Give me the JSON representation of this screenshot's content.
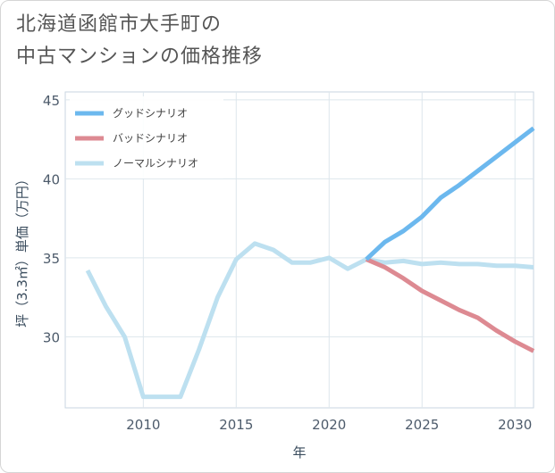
{
  "title_lines": [
    "北海道函館市大手町の",
    "中古マンションの価格推移"
  ],
  "chart_data": {
    "type": "line",
    "title": "北海道函館市大手町の中古マンションの価格推移",
    "xlabel": "年",
    "ylabel": "坪（3.3㎡）単価（万円）",
    "xlim": [
      2005.8,
      2031
    ],
    "ylim": [
      25.5,
      45.5
    ],
    "x_ticks": [
      2010,
      2015,
      2020,
      2025,
      2030
    ],
    "y_ticks": [
      30,
      35,
      40,
      45
    ],
    "grid": true,
    "legend_position": "top-left",
    "series": [
      {
        "name": "グッドシナリオ",
        "color": "#6cb8ee",
        "x": [
          2022,
          2023,
          2024,
          2025,
          2026,
          2027,
          2028,
          2029,
          2030,
          2031
        ],
        "y": [
          34.9,
          36.0,
          36.7,
          37.6,
          38.8,
          39.6,
          40.5,
          41.4,
          42.3,
          43.2
        ]
      },
      {
        "name": "バッドシナリオ",
        "color": "#dd8a92",
        "x": [
          2022,
          2023,
          2024,
          2025,
          2026,
          2027,
          2028,
          2029,
          2030,
          2031
        ],
        "y": [
          34.9,
          34.4,
          33.7,
          32.9,
          32.3,
          31.7,
          31.2,
          30.4,
          29.7,
          29.1
        ]
      },
      {
        "name": "ノーマルシナリオ",
        "color": "#bde0f0",
        "x": [
          2007,
          2008,
          2009,
          2010,
          2011,
          2012,
          2013,
          2014,
          2015,
          2016,
          2017,
          2018,
          2019,
          2020,
          2021,
          2022,
          2023,
          2024,
          2025,
          2026,
          2027,
          2028,
          2029,
          2030,
          2031
        ],
        "y": [
          34.2,
          31.9,
          30.0,
          26.2,
          26.2,
          26.2,
          29.2,
          32.5,
          34.9,
          35.9,
          35.5,
          34.7,
          34.7,
          35.0,
          34.3,
          34.9,
          34.7,
          34.8,
          34.6,
          34.7,
          34.6,
          34.6,
          34.5,
          34.5,
          34.4
        ]
      }
    ]
  }
}
